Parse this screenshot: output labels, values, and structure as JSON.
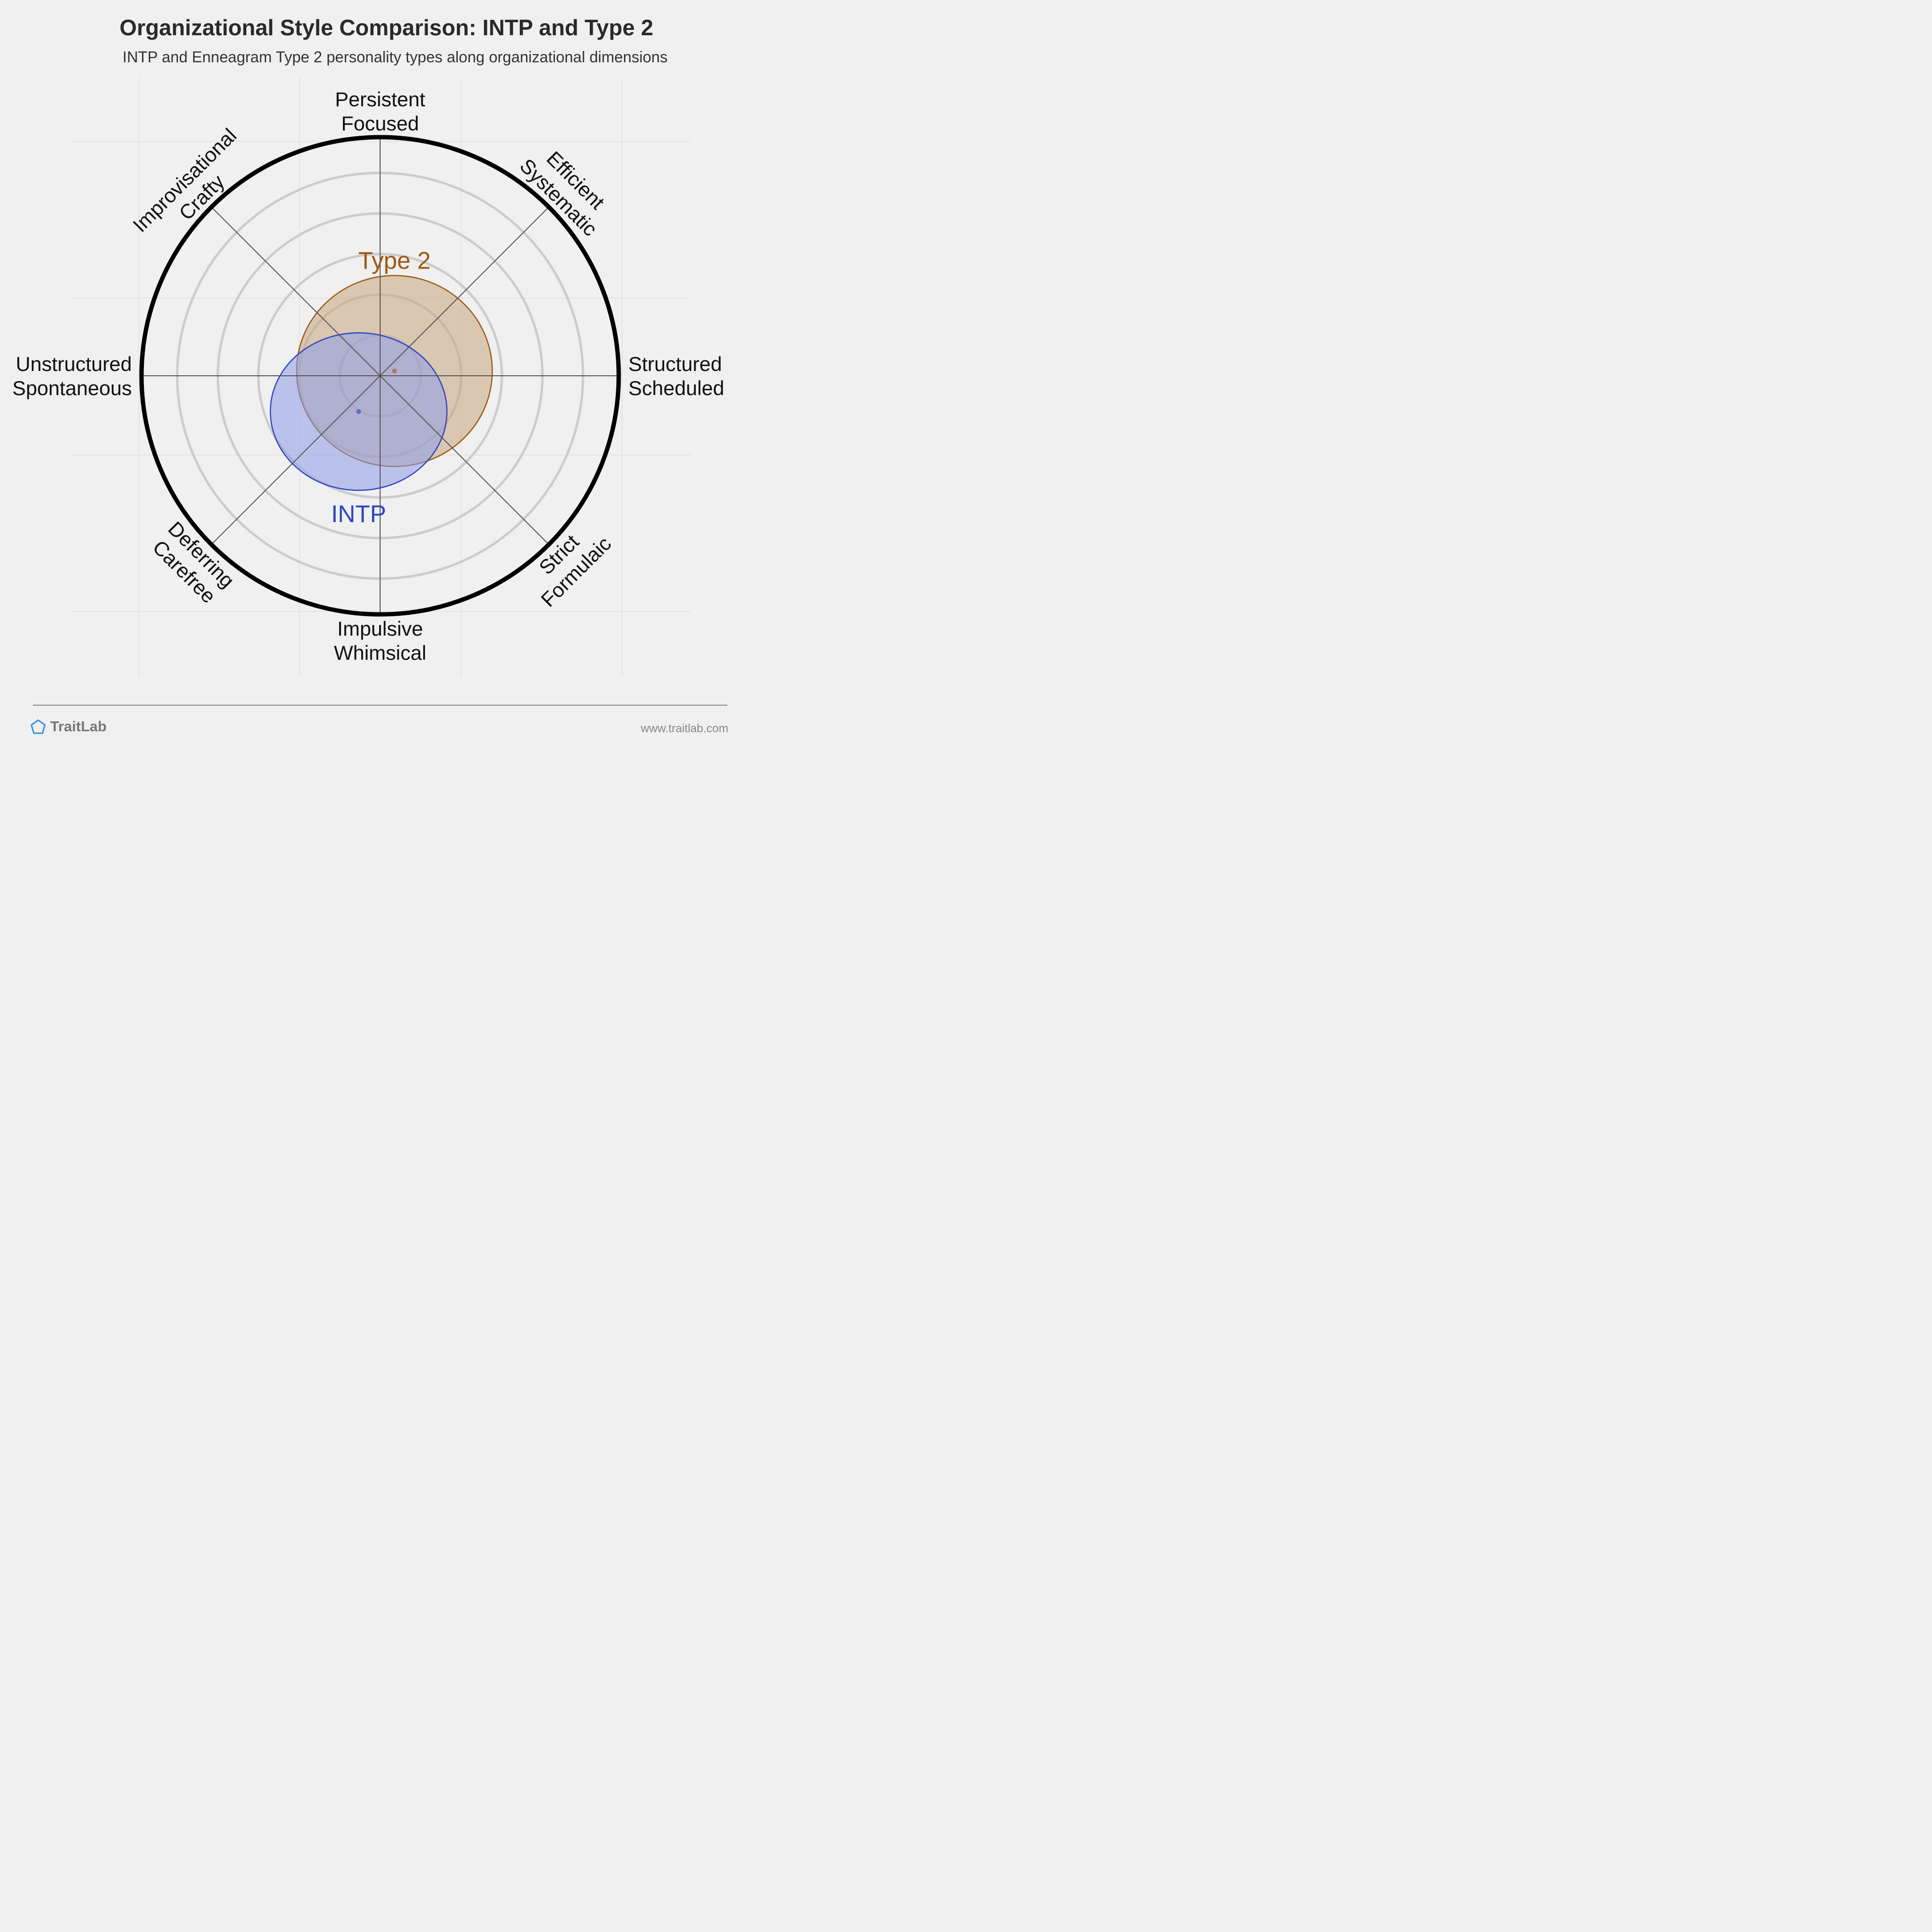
{
  "title": "Organizational Style Comparison: INTP and Type 2",
  "subtitle": "INTP and Enneagram Type 2 personality types along organizational dimensions",
  "brand": {
    "name": "TraitLab",
    "icon": "pentagon-icon",
    "url": "www.traitlab.com"
  },
  "chart_data": {
    "type": "radar-circle",
    "axes": [
      {
        "lines": [
          "Persistent",
          "Focused"
        ]
      },
      {
        "lines": [
          "Efficient",
          "Systematic"
        ]
      },
      {
        "lines": [
          "Structured",
          "Scheduled"
        ]
      },
      {
        "lines": [
          "Strict",
          "Formulaic"
        ]
      },
      {
        "lines": [
          "Impulsive",
          "Whimsical"
        ]
      },
      {
        "lines": [
          "Deferring",
          "Carefree"
        ]
      },
      {
        "lines": [
          "Unstructured",
          "Spontaneous"
        ]
      },
      {
        "lines": [
          "Improvisational",
          "Crafty"
        ]
      }
    ],
    "series": [
      {
        "name": "Type 2",
        "center": [
          0.06,
          0.02
        ],
        "spread": [
          0.41,
          0.4
        ],
        "color": "#9e5a14",
        "fill": "#c9a57d"
      },
      {
        "name": "INTP",
        "center": [
          -0.09,
          -0.15
        ],
        "spread": [
          0.37,
          0.33
        ],
        "color": "#2e46c0",
        "fill": "#8e9cea"
      }
    ]
  }
}
